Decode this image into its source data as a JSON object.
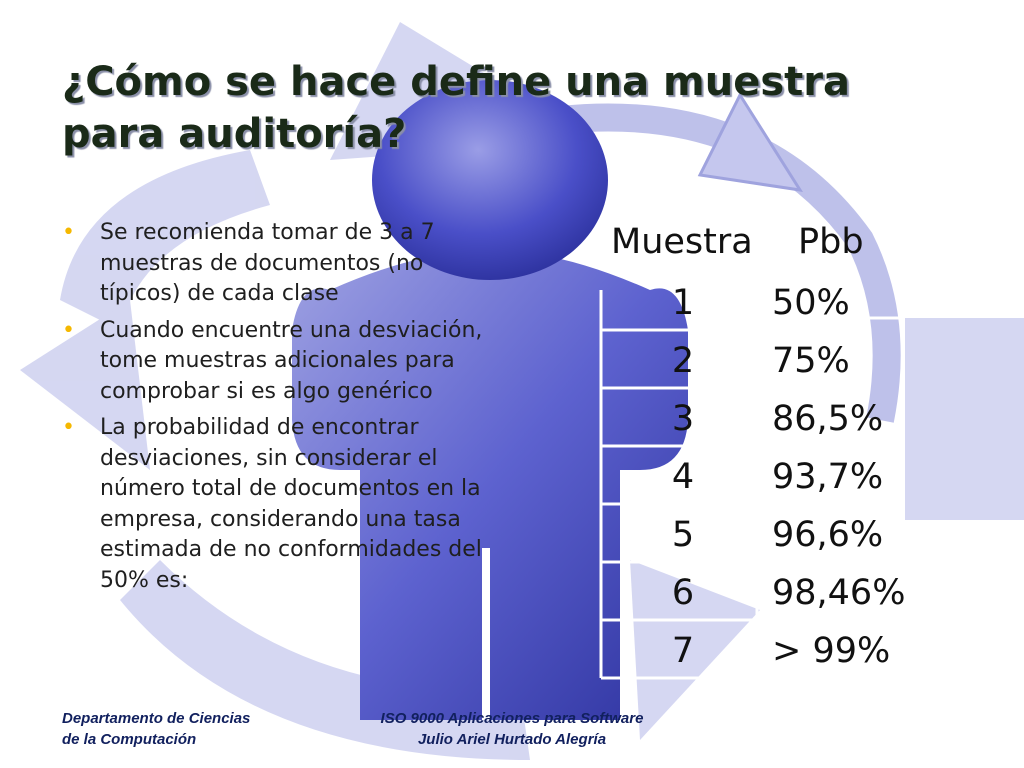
{
  "slide": {
    "title_lines": [
      "¿Cómo se hace define una muestra",
      "para auditoría?"
    ],
    "bullets": [
      "Se recomienda tomar de 3 a 7 muestras de documentos (no típicos) de cada clase",
      "Cuando encuentre una desviación, tome muestras adicionales para comprobar si es algo genérico",
      "La probabilidad de encontrar desviaciones, sin considerar el número total de documentos en la empresa, considerando una tasa estimada de no conformidades del 50% es:"
    ],
    "bullet_color": "#f5b800",
    "table": {
      "headers": [
        "Muestra",
        "Pbb"
      ],
      "rows": [
        {
          "muestra": "1",
          "pbb": "50%"
        },
        {
          "muestra": "2",
          "pbb": "75%"
        },
        {
          "muestra": "3",
          "pbb": "86,5%"
        },
        {
          "muestra": "4",
          "pbb": "93,7%"
        },
        {
          "muestra": "5",
          "pbb": "96,6%"
        },
        {
          "muestra": "6",
          "pbb": "98,46%"
        },
        {
          "muestra": "7",
          "pbb": "> 99%"
        }
      ]
    },
    "footer_left": [
      "Departamento de Ciencias",
      "de la Computación"
    ],
    "footer_center": [
      "ISO 9000 Aplicaciones para Software",
      "Julio Ariel Hurtado Alegría"
    ]
  }
}
